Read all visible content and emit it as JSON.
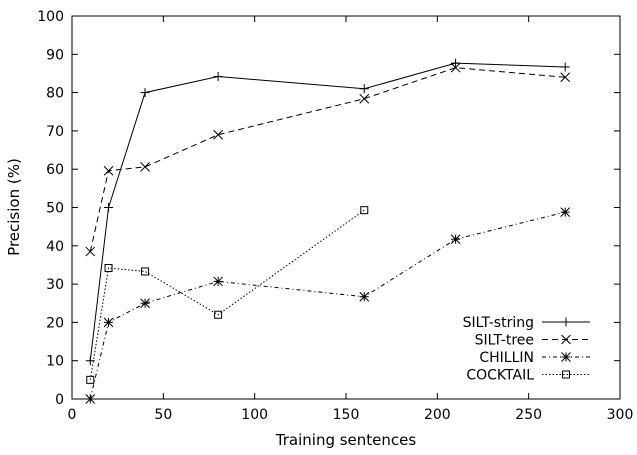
{
  "chart_data": {
    "type": "line",
    "xlabel": "Training sentences",
    "ylabel": "Precision (%)",
    "xlim": [
      0,
      300
    ],
    "ylim": [
      0,
      100
    ],
    "xticks": [
      0,
      50,
      100,
      150,
      200,
      250,
      300
    ],
    "yticks": [
      0,
      10,
      20,
      30,
      40,
      50,
      60,
      70,
      80,
      90,
      100
    ],
    "grid": false,
    "legend_position": "bottom-right",
    "series": [
      {
        "name": "SILT-string",
        "line_style": "solid",
        "marker": "plus",
        "x": [
          10,
          20,
          40,
          80,
          160,
          210,
          270
        ],
        "y": [
          10,
          50,
          80,
          84.2,
          81,
          87.7,
          86.7
        ]
      },
      {
        "name": "SILT-tree",
        "line_style": "dashed",
        "marker": "cross",
        "x": [
          10,
          20,
          40,
          80,
          160,
          210,
          270
        ],
        "y": [
          38.5,
          59.6,
          60.6,
          69,
          78.4,
          86.5,
          84
        ]
      },
      {
        "name": "CHILLIN",
        "line_style": "dash-dot",
        "marker": "star",
        "x": [
          10,
          20,
          40,
          80,
          160,
          210,
          270
        ],
        "y": [
          0,
          20,
          25,
          30.7,
          26.7,
          41.7,
          48.8
        ]
      },
      {
        "name": "COCKTAIL",
        "line_style": "dotted",
        "marker": "square",
        "x": [
          10,
          20,
          40,
          80,
          160
        ],
        "y": [
          5,
          34.2,
          33.3,
          22,
          49.3
        ]
      }
    ]
  }
}
